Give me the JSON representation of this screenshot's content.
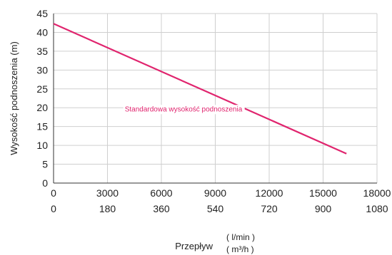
{
  "chart_data": {
    "type": "line",
    "xlabel": "Przepływ",
    "x_units": [
      "( l/min )",
      "( m³/h )"
    ],
    "ylabel": "Wysokość podnoszenia (m)",
    "xlim": [
      0,
      18000
    ],
    "ylim": [
      0,
      45
    ],
    "x_ticks": [
      0,
      3000,
      6000,
      9000,
      12000,
      15000,
      18000
    ],
    "x_ticks_secondary": [
      "0",
      "180",
      "360",
      "540",
      "720",
      "900",
      "1080"
    ],
    "y_ticks": [
      0,
      5,
      10,
      15,
      20,
      25,
      30,
      35,
      40,
      45
    ],
    "grid": true,
    "line_color": "#e0246e",
    "series": [
      {
        "x": [
          0,
          16300
        ],
        "y": [
          42.3,
          7.8
        ]
      }
    ],
    "annotation": {
      "text": "Standardowa wysokość podnoszenia",
      "x": 10500,
      "y": 19.8
    }
  }
}
